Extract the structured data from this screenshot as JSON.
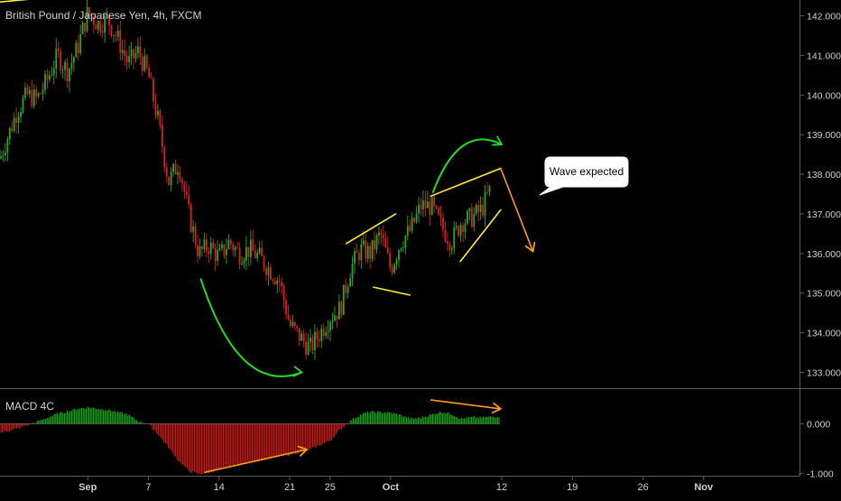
{
  "chart_data": [
    {
      "type": "candlestick",
      "title": "British Pound / Japanese Yen, 4h, FXCM",
      "ylim": [
        132.6,
        142.4
      ],
      "yticks": [
        133.0,
        134.0,
        135.0,
        136.0,
        137.0,
        138.0,
        139.0,
        140.0,
        141.0,
        142.0
      ],
      "ytick_labels": [
        "133.000",
        "134.000",
        "135.000",
        "136.000",
        "137.000",
        "138.000",
        "139.000",
        "140.000",
        "141.000",
        "142.000"
      ],
      "xlim_days": [
        -8.7,
        70.5
      ],
      "xticks": [
        {
          "label": "Sep",
          "day": 0
        },
        {
          "label": "7",
          "day": 6
        },
        {
          "label": "14",
          "day": 13
        },
        {
          "label": "21",
          "day": 20
        },
        {
          "label": "25",
          "day": 24
        },
        {
          "label": "Oct",
          "day": 30
        },
        {
          "label": "12",
          "day": 41
        },
        {
          "label": "19",
          "day": 48
        },
        {
          "label": "26",
          "day": 55
        },
        {
          "label": "Nov",
          "day": 61
        }
      ],
      "price_path": [
        [
          -8.7,
          138.4
        ],
        [
          -8.0,
          138.9
        ],
        [
          -7.0,
          139.6
        ],
        [
          -6.0,
          140.0
        ],
        [
          -5.0,
          139.9
        ],
        [
          -4.0,
          140.4
        ],
        [
          -3.0,
          141.0
        ],
        [
          -2.0,
          140.6
        ],
        [
          -1.0,
          141.2
        ],
        [
          0.0,
          142.1
        ],
        [
          1.0,
          141.8
        ],
        [
          2.0,
          141.9
        ],
        [
          3.0,
          141.4
        ],
        [
          4.0,
          140.8
        ],
        [
          5.0,
          141.1
        ],
        [
          6.0,
          140.5
        ],
        [
          7.0,
          139.3
        ],
        [
          8.0,
          137.8
        ],
        [
          9.0,
          138.3
        ],
        [
          10.0,
          137.0
        ],
        [
          11.0,
          136.0
        ],
        [
          12.0,
          136.2
        ],
        [
          13.0,
          135.9
        ],
        [
          14.0,
          136.3
        ],
        [
          15.0,
          136.0
        ],
        [
          16.0,
          136.1
        ],
        [
          17.0,
          135.9
        ],
        [
          18.0,
          135.6
        ],
        [
          19.0,
          135.3
        ],
        [
          20.0,
          134.2
        ],
        [
          21.0,
          133.9
        ],
        [
          22.0,
          133.6
        ],
        [
          23.0,
          134.0
        ],
        [
          24.0,
          134.4
        ],
        [
          25.0,
          134.6
        ],
        [
          26.0,
          135.6
        ],
        [
          27.0,
          136.1
        ],
        [
          28.0,
          136.0
        ],
        [
          29.0,
          136.5
        ],
        [
          30.0,
          135.6
        ],
        [
          31.0,
          136.3
        ],
        [
          32.0,
          136.6
        ],
        [
          33.0,
          137.2
        ],
        [
          34.0,
          137.2
        ],
        [
          35.0,
          136.7
        ],
        [
          36.0,
          136.3
        ],
        [
          37.0,
          136.8
        ],
        [
          38.0,
          136.9
        ],
        [
          39.0,
          137.1
        ],
        [
          40.0,
          137.7
        ]
      ],
      "annotations": [
        {
          "kind": "label",
          "text": "Wave expected"
        }
      ]
    },
    {
      "type": "bar",
      "title": "MACD 4C",
      "ylim": [
        -1.05,
        0.7
      ],
      "yticks": [
        0.0,
        -1.0
      ],
      "ytick_labels": [
        "0.000",
        "-1.000"
      ],
      "colors": {
        "positive": "#1aa51a",
        "negative": "#c81e1e"
      },
      "macd_path": [
        [
          -8.7,
          -0.18
        ],
        [
          -7.0,
          -0.1
        ],
        [
          -5.0,
          0.04
        ],
        [
          -3.0,
          0.2
        ],
        [
          -1.0,
          0.3
        ],
        [
          0.0,
          0.33
        ],
        [
          2.0,
          0.28
        ],
        [
          4.0,
          0.18
        ],
        [
          5.0,
          0.05
        ],
        [
          6.0,
          0.0
        ],
        [
          7.0,
          -0.22
        ],
        [
          8.0,
          -0.48
        ],
        [
          9.0,
          -0.75
        ],
        [
          10.0,
          -0.95
        ],
        [
          11.0,
          -1.02
        ],
        [
          12.0,
          -0.98
        ],
        [
          14.0,
          -0.86
        ],
        [
          16.0,
          -0.78
        ],
        [
          18.0,
          -0.7
        ],
        [
          20.0,
          -0.62
        ],
        [
          22.0,
          -0.52
        ],
        [
          24.0,
          -0.34
        ],
        [
          25.0,
          -0.12
        ],
        [
          26.0,
          0.06
        ],
        [
          27.0,
          0.18
        ],
        [
          28.0,
          0.24
        ],
        [
          30.0,
          0.22
        ],
        [
          31.0,
          0.17
        ],
        [
          32.0,
          0.1
        ],
        [
          33.0,
          0.12
        ],
        [
          34.0,
          0.18
        ],
        [
          35.0,
          0.24
        ],
        [
          36.0,
          0.2
        ],
        [
          37.0,
          0.1
        ],
        [
          38.0,
          0.13
        ],
        [
          39.0,
          0.12
        ],
        [
          40.0,
          0.14
        ],
        [
          40.8,
          0.15
        ]
      ]
    }
  ],
  "colors": {
    "background": "#000000",
    "up": "#26a82c",
    "down": "#d91f26",
    "text": "#d0d0d0",
    "callout_bg": "#ffffff",
    "callout_text": "#000000",
    "annotation_green": "#22dd22",
    "annotation_yellow": "#ffee33",
    "annotation_orange": "#ff9a1a"
  }
}
